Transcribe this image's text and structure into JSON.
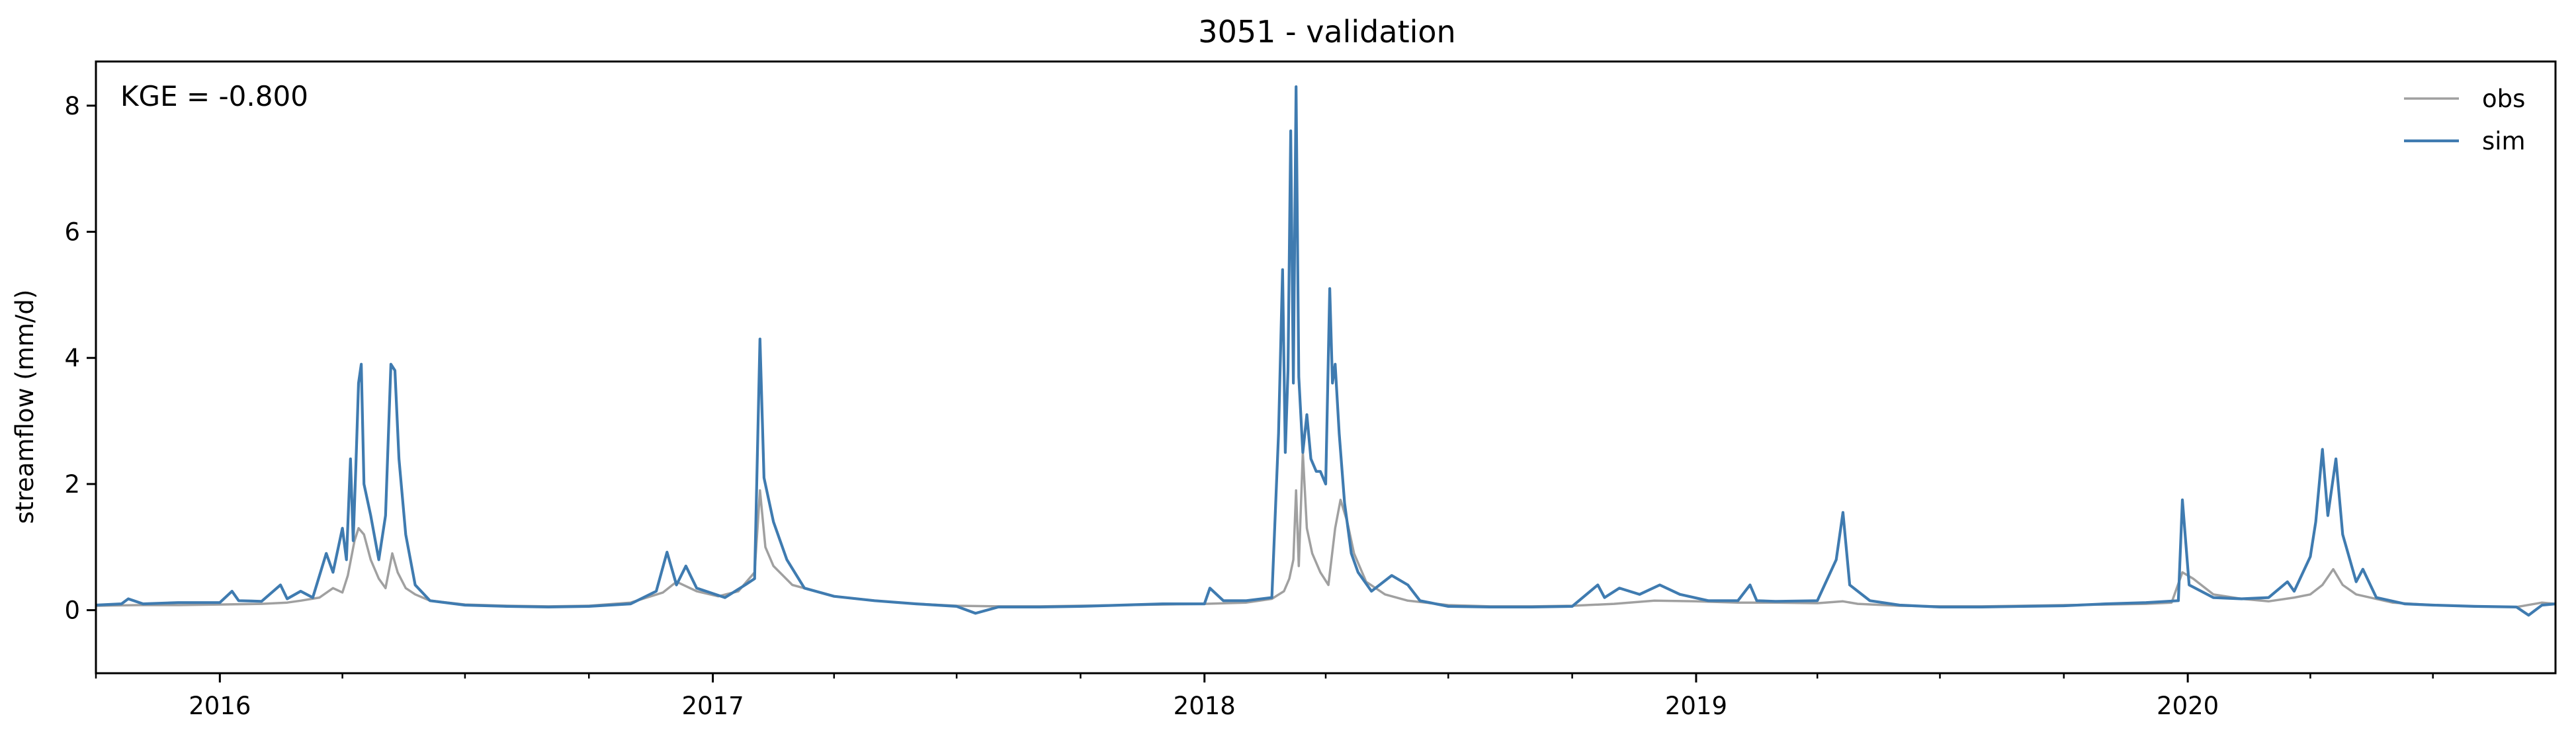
{
  "chart_data": {
    "type": "line",
    "title": "3051 - validation",
    "ylabel": "streamflow (mm/d)",
    "xlabel": "",
    "annotation": "KGE = -0.800",
    "legend_position": "top-right",
    "grid": false,
    "xlim": [
      "2015-10-01",
      "2020-09-30"
    ],
    "ylim": [
      -1.0,
      8.7
    ],
    "yticks": [
      0,
      2,
      4,
      6,
      8
    ],
    "xticks": [
      {
        "label": "2016",
        "date": "2016-01-01"
      },
      {
        "label": "2017",
        "date": "2017-01-01"
      },
      {
        "label": "2018",
        "date": "2018-01-01"
      },
      {
        "label": "2019",
        "date": "2019-01-01"
      },
      {
        "label": "2020",
        "date": "2020-01-01"
      }
    ],
    "series": [
      {
        "name": "obs",
        "color": "#a0a0a0",
        "points": [
          [
            "2015-10-01",
            0.07
          ],
          [
            "2015-11-01",
            0.08
          ],
          [
            "2015-12-01",
            0.08
          ],
          [
            "2016-01-01",
            0.09
          ],
          [
            "2016-02-01",
            0.1
          ],
          [
            "2016-02-20",
            0.12
          ],
          [
            "2016-03-01",
            0.15
          ],
          [
            "2016-03-15",
            0.2
          ],
          [
            "2016-03-25",
            0.35
          ],
          [
            "2016-04-01",
            0.28
          ],
          [
            "2016-04-05",
            0.55
          ],
          [
            "2016-04-10",
            1.1
          ],
          [
            "2016-04-13",
            1.3
          ],
          [
            "2016-04-17",
            1.2
          ],
          [
            "2016-04-22",
            0.8
          ],
          [
            "2016-04-28",
            0.5
          ],
          [
            "2016-05-03",
            0.35
          ],
          [
            "2016-05-08",
            0.9
          ],
          [
            "2016-05-12",
            0.6
          ],
          [
            "2016-05-18",
            0.35
          ],
          [
            "2016-05-25",
            0.25
          ],
          [
            "2016-06-05",
            0.15
          ],
          [
            "2016-07-01",
            0.09
          ],
          [
            "2016-08-01",
            0.07
          ],
          [
            "2016-09-01",
            0.06
          ],
          [
            "2016-10-01",
            0.07
          ],
          [
            "2016-11-01",
            0.12
          ],
          [
            "2016-11-25",
            0.28
          ],
          [
            "2016-12-05",
            0.45
          ],
          [
            "2016-12-20",
            0.3
          ],
          [
            "2017-01-05",
            0.22
          ],
          [
            "2017-01-20",
            0.3
          ],
          [
            "2017-02-01",
            0.6
          ],
          [
            "2017-02-05",
            1.9
          ],
          [
            "2017-02-09",
            1.0
          ],
          [
            "2017-02-15",
            0.7
          ],
          [
            "2017-03-01",
            0.4
          ],
          [
            "2017-04-01",
            0.22
          ],
          [
            "2017-05-01",
            0.15
          ],
          [
            "2017-06-01",
            0.1
          ],
          [
            "2017-07-01",
            0.07
          ],
          [
            "2017-08-01",
            0.06
          ],
          [
            "2017-09-01",
            0.06
          ],
          [
            "2017-10-01",
            0.07
          ],
          [
            "2017-11-01",
            0.08
          ],
          [
            "2017-12-01",
            0.09
          ],
          [
            "2018-01-01",
            0.1
          ],
          [
            "2018-02-01",
            0.12
          ],
          [
            "2018-02-20",
            0.18
          ],
          [
            "2018-03-01",
            0.3
          ],
          [
            "2018-03-05",
            0.5
          ],
          [
            "2018-03-08",
            0.8
          ],
          [
            "2018-03-10",
            1.9
          ],
          [
            "2018-03-12",
            0.7
          ],
          [
            "2018-03-15",
            2.5
          ],
          [
            "2018-03-18",
            1.3
          ],
          [
            "2018-03-22",
            0.9
          ],
          [
            "2018-03-28",
            0.6
          ],
          [
            "2018-04-03",
            0.4
          ],
          [
            "2018-04-08",
            1.3
          ],
          [
            "2018-04-12",
            1.75
          ],
          [
            "2018-04-17",
            1.4
          ],
          [
            "2018-04-22",
            0.9
          ],
          [
            "2018-05-01",
            0.45
          ],
          [
            "2018-05-15",
            0.25
          ],
          [
            "2018-06-01",
            0.15
          ],
          [
            "2018-07-01",
            0.08
          ],
          [
            "2018-08-01",
            0.06
          ],
          [
            "2018-09-01",
            0.06
          ],
          [
            "2018-10-01",
            0.07
          ],
          [
            "2018-11-01",
            0.1
          ],
          [
            "2018-12-01",
            0.15
          ],
          [
            "2019-01-01",
            0.14
          ],
          [
            "2019-02-01",
            0.12
          ],
          [
            "2019-03-01",
            0.12
          ],
          [
            "2019-04-01",
            0.11
          ],
          [
            "2019-04-20",
            0.14
          ],
          [
            "2019-05-01",
            0.1
          ],
          [
            "2019-06-01",
            0.07
          ],
          [
            "2019-07-01",
            0.06
          ],
          [
            "2019-08-01",
            0.06
          ],
          [
            "2019-09-01",
            0.07
          ],
          [
            "2019-10-01",
            0.08
          ],
          [
            "2019-11-01",
            0.09
          ],
          [
            "2019-12-01",
            0.1
          ],
          [
            "2019-12-20",
            0.12
          ],
          [
            "2019-12-28",
            0.6
          ],
          [
            "2020-01-05",
            0.5
          ],
          [
            "2020-01-20",
            0.25
          ],
          [
            "2020-02-10",
            0.18
          ],
          [
            "2020-03-01",
            0.14
          ],
          [
            "2020-03-20",
            0.2
          ],
          [
            "2020-04-01",
            0.25
          ],
          [
            "2020-04-10",
            0.4
          ],
          [
            "2020-04-18",
            0.65
          ],
          [
            "2020-04-25",
            0.4
          ],
          [
            "2020-05-05",
            0.25
          ],
          [
            "2020-06-01",
            0.12
          ],
          [
            "2020-07-01",
            0.08
          ],
          [
            "2020-08-01",
            0.06
          ],
          [
            "2020-09-01",
            0.05
          ],
          [
            "2020-09-20",
            0.12
          ],
          [
            "2020-09-30",
            0.1
          ]
        ]
      },
      {
        "name": "sim",
        "color": "#3f7bb0",
        "points": [
          [
            "2015-10-01",
            0.08
          ],
          [
            "2015-10-20",
            0.1
          ],
          [
            "2015-10-25",
            0.18
          ],
          [
            "2015-11-05",
            0.1
          ],
          [
            "2015-12-01",
            0.12
          ],
          [
            "2016-01-01",
            0.12
          ],
          [
            "2016-01-10",
            0.3
          ],
          [
            "2016-01-15",
            0.15
          ],
          [
            "2016-02-01",
            0.14
          ],
          [
            "2016-02-15",
            0.4
          ],
          [
            "2016-02-20",
            0.18
          ],
          [
            "2016-03-01",
            0.3
          ],
          [
            "2016-03-10",
            0.2
          ],
          [
            "2016-03-20",
            0.9
          ],
          [
            "2016-03-25",
            0.6
          ],
          [
            "2016-04-01",
            1.3
          ],
          [
            "2016-04-04",
            0.8
          ],
          [
            "2016-04-07",
            2.4
          ],
          [
            "2016-04-09",
            1.1
          ],
          [
            "2016-04-11",
            2.3
          ],
          [
            "2016-04-13",
            3.6
          ],
          [
            "2016-04-15",
            3.9
          ],
          [
            "2016-04-17",
            2.0
          ],
          [
            "2016-04-22",
            1.5
          ],
          [
            "2016-04-28",
            0.8
          ],
          [
            "2016-05-03",
            1.5
          ],
          [
            "2016-05-07",
            3.9
          ],
          [
            "2016-05-10",
            3.8
          ],
          [
            "2016-05-13",
            2.4
          ],
          [
            "2016-05-18",
            1.2
          ],
          [
            "2016-05-25",
            0.4
          ],
          [
            "2016-06-05",
            0.15
          ],
          [
            "2016-07-01",
            0.08
          ],
          [
            "2016-08-01",
            0.06
          ],
          [
            "2016-09-01",
            0.05
          ],
          [
            "2016-10-01",
            0.06
          ],
          [
            "2016-11-01",
            0.1
          ],
          [
            "2016-11-20",
            0.3
          ],
          [
            "2016-11-28",
            0.92
          ],
          [
            "2016-12-05",
            0.4
          ],
          [
            "2016-12-12",
            0.7
          ],
          [
            "2016-12-20",
            0.35
          ],
          [
            "2017-01-10",
            0.2
          ],
          [
            "2017-01-25",
            0.4
          ],
          [
            "2017-02-01",
            0.5
          ],
          [
            "2017-02-05",
            4.3
          ],
          [
            "2017-02-08",
            2.1
          ],
          [
            "2017-02-15",
            1.4
          ],
          [
            "2017-02-25",
            0.8
          ],
          [
            "2017-03-10",
            0.35
          ],
          [
            "2017-04-01",
            0.22
          ],
          [
            "2017-05-01",
            0.15
          ],
          [
            "2017-06-01",
            0.1
          ],
          [
            "2017-07-01",
            0.06
          ],
          [
            "2017-07-15",
            -0.05
          ],
          [
            "2017-08-01",
            0.05
          ],
          [
            "2017-09-01",
            0.05
          ],
          [
            "2017-10-01",
            0.06
          ],
          [
            "2017-11-01",
            0.08
          ],
          [
            "2017-12-01",
            0.1
          ],
          [
            "2018-01-01",
            0.1
          ],
          [
            "2018-01-05",
            0.35
          ],
          [
            "2018-01-15",
            0.15
          ],
          [
            "2018-02-01",
            0.15
          ],
          [
            "2018-02-20",
            0.2
          ],
          [
            "2018-02-25",
            2.8
          ],
          [
            "2018-02-28",
            5.4
          ],
          [
            "2018-03-02",
            2.5
          ],
          [
            "2018-03-04",
            3.8
          ],
          [
            "2018-03-06",
            7.6
          ],
          [
            "2018-03-08",
            3.6
          ],
          [
            "2018-03-10",
            8.3
          ],
          [
            "2018-03-12",
            3.7
          ],
          [
            "2018-03-15",
            2.5
          ],
          [
            "2018-03-18",
            3.1
          ],
          [
            "2018-03-21",
            2.4
          ],
          [
            "2018-03-25",
            2.2
          ],
          [
            "2018-03-28",
            2.2
          ],
          [
            "2018-04-01",
            2.0
          ],
          [
            "2018-04-04",
            5.1
          ],
          [
            "2018-04-06",
            3.6
          ],
          [
            "2018-04-08",
            3.9
          ],
          [
            "2018-04-11",
            2.8
          ],
          [
            "2018-04-15",
            1.7
          ],
          [
            "2018-04-20",
            0.9
          ],
          [
            "2018-04-25",
            0.6
          ],
          [
            "2018-05-05",
            0.3
          ],
          [
            "2018-05-20",
            0.55
          ],
          [
            "2018-06-01",
            0.4
          ],
          [
            "2018-06-10",
            0.15
          ],
          [
            "2018-07-01",
            0.06
          ],
          [
            "2018-08-01",
            0.05
          ],
          [
            "2018-09-01",
            0.05
          ],
          [
            "2018-10-01",
            0.06
          ],
          [
            "2018-10-20",
            0.4
          ],
          [
            "2018-10-25",
            0.2
          ],
          [
            "2018-11-05",
            0.35
          ],
          [
            "2018-11-20",
            0.25
          ],
          [
            "2018-12-05",
            0.4
          ],
          [
            "2018-12-20",
            0.25
          ],
          [
            "2019-01-10",
            0.15
          ],
          [
            "2019-02-01",
            0.15
          ],
          [
            "2019-02-10",
            0.4
          ],
          [
            "2019-02-15",
            0.15
          ],
          [
            "2019-03-01",
            0.14
          ],
          [
            "2019-04-01",
            0.15
          ],
          [
            "2019-04-15",
            0.8
          ],
          [
            "2019-04-20",
            1.55
          ],
          [
            "2019-04-25",
            0.4
          ],
          [
            "2019-05-10",
            0.15
          ],
          [
            "2019-06-01",
            0.08
          ],
          [
            "2019-07-01",
            0.05
          ],
          [
            "2019-08-01",
            0.05
          ],
          [
            "2019-09-01",
            0.06
          ],
          [
            "2019-10-01",
            0.07
          ],
          [
            "2019-11-01",
            0.1
          ],
          [
            "2019-12-01",
            0.12
          ],
          [
            "2019-12-25",
            0.15
          ],
          [
            "2019-12-28",
            1.75
          ],
          [
            "2020-01-02",
            0.4
          ],
          [
            "2020-01-20",
            0.2
          ],
          [
            "2020-02-10",
            0.18
          ],
          [
            "2020-03-01",
            0.2
          ],
          [
            "2020-03-15",
            0.45
          ],
          [
            "2020-03-20",
            0.3
          ],
          [
            "2020-04-01",
            0.85
          ],
          [
            "2020-04-05",
            1.4
          ],
          [
            "2020-04-10",
            2.55
          ],
          [
            "2020-04-14",
            1.5
          ],
          [
            "2020-04-20",
            2.4
          ],
          [
            "2020-04-25",
            1.2
          ],
          [
            "2020-05-05",
            0.45
          ],
          [
            "2020-05-10",
            0.65
          ],
          [
            "2020-05-20",
            0.2
          ],
          [
            "2020-06-10",
            0.1
          ],
          [
            "2020-07-01",
            0.08
          ],
          [
            "2020-08-01",
            0.06
          ],
          [
            "2020-09-01",
            0.05
          ],
          [
            "2020-09-10",
            -0.08
          ],
          [
            "2020-09-20",
            0.08
          ],
          [
            "2020-09-30",
            0.1
          ]
        ]
      }
    ]
  }
}
